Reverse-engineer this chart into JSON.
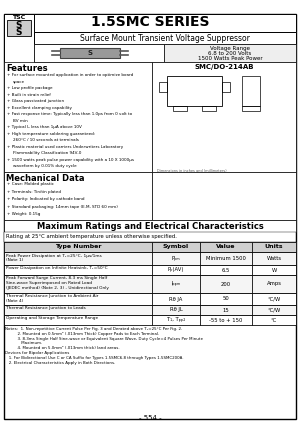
{
  "title": "1.5SMC SERIES",
  "subtitle": "Surface Mount Transient Voltage Suppressor",
  "voltage_range_line1": "Voltage Range",
  "voltage_range_line2": "6.8 to 200 Volts",
  "voltage_range_line3": "1500 Watts Peak Power",
  "package": "SMC/DO-214AB",
  "features_title": "Features",
  "features": [
    "For surface mounted application in order to optimize board space",
    "Low profile package",
    "Built in strain relief",
    "Glass passivated junction",
    "Excellent clamping capability",
    "Fast response time: Typically less than 1.0ps from 0 volt to BV min",
    "Typical I₂ less than 1μA above 10V",
    "High temperature soldering guaranteed:",
    "260°C / 10 seconds at terminals",
    "Plastic material used carriers Underwriters Laboratory",
    "Flammability Classification 94V-0",
    "1500 watts peak pulse power capability with a 10 X 1000μs",
    "waveform by 0.01% duty cycle"
  ],
  "mech_title": "Mechanical Data",
  "mech": [
    "Case: Molded plastic",
    "Terminals: Tin/tin plated",
    "Polarity: Indicated by cathode band",
    "Standard packaging: 14mm tape (E.M, STD 60 mm)",
    "Weight: 0.15g"
  ],
  "max_title": "Maximum Ratings and Electrical Characteristics",
  "rating_note": "Rating at 25°C ambient temperature unless otherwise specified.",
  "table_headers": [
    "Type Number",
    "Symbol",
    "Value",
    "Units"
  ],
  "table_rows": [
    [
      "Peak Power Dissipation at T₁=25°C, 1μs/1ms\n(Note 1)",
      "Pₚₘ",
      "Minimum 1500",
      "Watts"
    ],
    [
      "Power Dissipation on Infinite Heatsink, T₁=50°C",
      "Pₚ(AV)",
      "6.5",
      "W"
    ],
    [
      "Peak Forward Surge Current, 8.3 ms Single Half\nSine-wave Superimposed on Rated Load\n(JEDEC method) (Note 2, 3) - Unidirectional Only",
      "Iₚₚₘ",
      "200",
      "Amps"
    ],
    [
      "Thermal Resistance Junction to Ambient Air\n(Note 4)",
      "Rθ JA",
      "50",
      "°C/W"
    ],
    [
      "Thermal Resistance Junction to Leads",
      "Rθ JL",
      "15",
      "°C/W"
    ],
    [
      "Operating and Storage Temperature Range",
      "T₁, Tₚₚ₂",
      "-55 to + 150",
      "°C"
    ]
  ],
  "notes_line1": "Notes:  1. Non-repetitive Current Pulse Per Fig. 3 and Derated above T₁=25°C Per Fig. 2.",
  "notes_line2": "          2. Mounted on 0.5mm² (.013mm Thick) Copper Pads to Each Terminal.",
  "notes_line3": "          3. 8.3ms Single Half Sine-wave or Equivalent Square Wave, Duty Cycle=4 Pulses Per Minute",
  "notes_line4": "             Maximum.",
  "notes_line5": "          4. Mounted on 5.0mm² (.013mm thick) land areas.",
  "notes_line6": "Devices for Bipolar Applications",
  "notes_line7": "   1. For Bidirectional Use C or CA Suffix for Types 1.5SMC6.8 through Types 1.5SMC200A.",
  "notes_line8": "   2. Electrical Characteristics Apply in Both Directions.",
  "page_number": "- 554 -",
  "bg_color": "#ffffff"
}
